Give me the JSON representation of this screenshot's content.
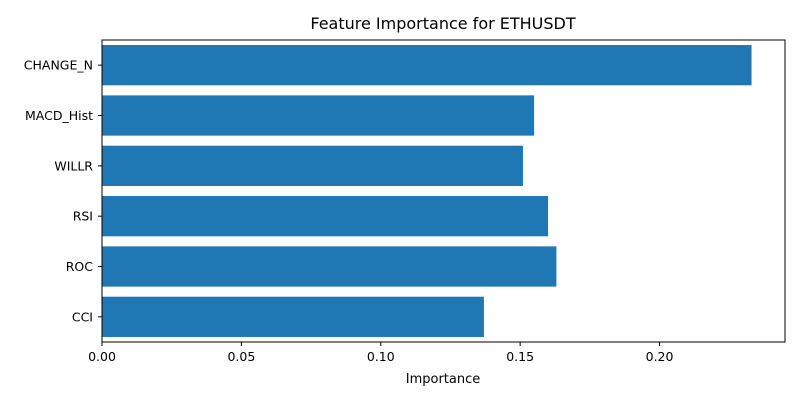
{
  "chart_data": {
    "type": "bar",
    "orientation": "horizontal",
    "title": "Feature Importance for ETHUSDT",
    "xlabel": "Importance",
    "ylabel": "",
    "categories": [
      "CHANGE_N",
      "MACD_Hist",
      "WILLR",
      "RSI",
      "ROC",
      "CCI"
    ],
    "values": [
      0.233,
      0.155,
      0.151,
      0.16,
      0.163,
      0.137
    ],
    "xlim": [
      0,
      0.245
    ],
    "xticks": [
      0.0,
      0.05,
      0.1,
      0.15,
      0.2
    ],
    "xtick_labels": [
      "0.00",
      "0.05",
      "0.10",
      "0.15",
      "0.20"
    ],
    "grid": false,
    "bar_color": "#1f77b4"
  }
}
